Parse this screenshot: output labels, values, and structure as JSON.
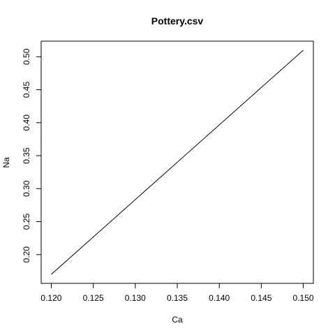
{
  "chart_data": {
    "type": "line",
    "title": "Pottery.csv",
    "xlabel": "Ca",
    "ylabel": "Na",
    "x": [
      0.12,
      0.15
    ],
    "y": [
      0.17,
      0.51
    ],
    "xlim": [
      0.1188,
      0.1512
    ],
    "ylim": [
      0.1564,
      0.5236
    ],
    "x_ticks": [
      0.12,
      0.125,
      0.13,
      0.135,
      0.14,
      0.145,
      0.15
    ],
    "x_tick_labels": [
      "0.120",
      "0.125",
      "0.130",
      "0.135",
      "0.140",
      "0.145",
      "0.150"
    ],
    "y_ticks": [
      0.2,
      0.25,
      0.3,
      0.35,
      0.4,
      0.45,
      0.5
    ],
    "y_tick_labels": [
      "0.20",
      "0.25",
      "0.30",
      "0.35",
      "0.40",
      "0.45",
      "0.50"
    ],
    "grid": false,
    "line_color": "#000000",
    "axis_color": "#000000"
  }
}
